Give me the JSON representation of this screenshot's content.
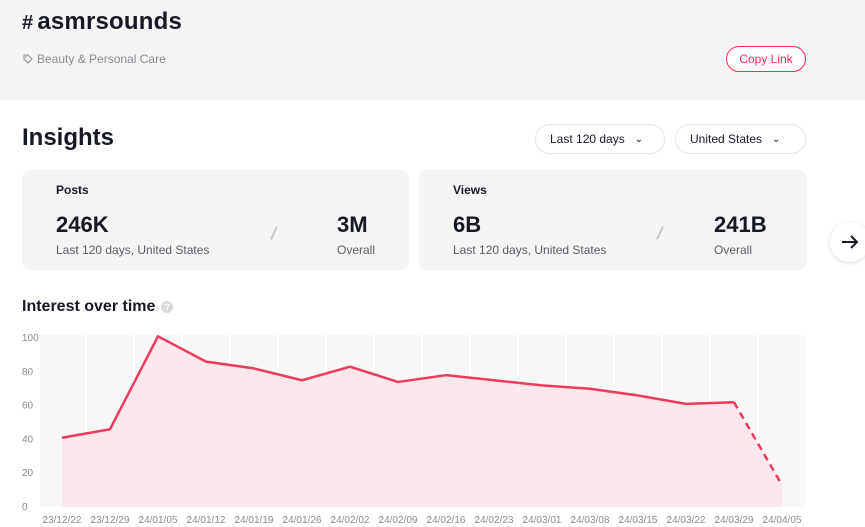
{
  "header": {
    "hash_symbol": "#",
    "hashtag": "asmrsounds",
    "category": "Beauty & Personal Care",
    "copy_link_label": "Copy Link"
  },
  "insights": {
    "title": "Insights",
    "period_filter": "Last 120 days",
    "country_filter": "United States"
  },
  "cards": {
    "posts": {
      "label": "Posts",
      "recent_value": "246K",
      "recent_caption": "Last 120 days, United States",
      "overall_value": "3M",
      "overall_caption": "Overall"
    },
    "views": {
      "label": "Views",
      "recent_value": "6B",
      "recent_caption": "Last 120 days, United States",
      "overall_value": "241B",
      "overall_caption": "Overall"
    }
  },
  "interest": {
    "title": "Interest over time"
  },
  "colors": {
    "accent": "#fe2c55",
    "line": "#ef3b5e",
    "fill": "#fde4ea",
    "card_bg": "#f5f5f6"
  },
  "chart_data": {
    "type": "area",
    "title": "",
    "xlabel": "",
    "ylabel": "",
    "ylim": [
      0,
      100
    ],
    "yticks": [
      0,
      20,
      40,
      60,
      80,
      100
    ],
    "grid": true,
    "x": [
      "23/12/22",
      "23/12/29",
      "24/01/05",
      "24/01/12",
      "24/01/19",
      "24/01/26",
      "24/02/02",
      "24/02/09",
      "24/02/16",
      "24/02/23",
      "24/03/01",
      "24/03/08",
      "24/03/15",
      "24/03/22",
      "24/03/29",
      "24/04/05"
    ],
    "values": [
      41,
      46,
      101,
      86,
      82,
      75,
      83,
      74,
      78,
      75,
      72,
      70,
      66,
      61,
      62,
      13
    ],
    "dashed_from_index": 14
  }
}
